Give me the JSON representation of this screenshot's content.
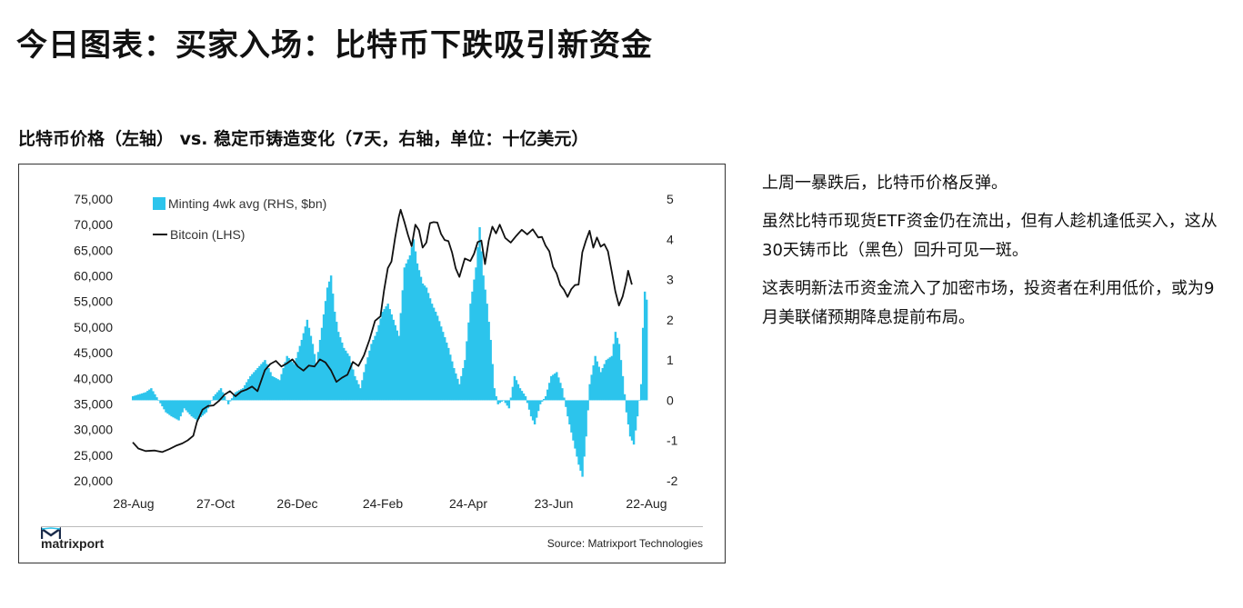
{
  "page": {
    "title": "今日图表：买家入场：比特币下跌吸引新资金",
    "chart_heading": "比特币价格（左轴） vs. 稳定币铸造变化（7天，右轴，单位：十亿美元）",
    "paragraphs": [
      "上周一暴跌后，比特币价格反弹。",
      "虽然比特币现货ETF资金仍在流出，但有人趁机逢低买入，这从30天铸币比（黑色）回升可见一斑。",
      "这表明新法币资金流入了加密市场，投资者在利用低价，或为9月美联储预期降息提前布局。"
    ]
  },
  "footer": {
    "brand": "matrixport",
    "source": "Source: Matrixport Technologies"
  },
  "colors": {
    "minting": "#2cc4ec",
    "bitcoin": "#111111"
  },
  "chart_data": {
    "type": "bar+line",
    "x_tick_labels": [
      "28-Aug",
      "27-Oct",
      "26-Dec",
      "24-Feb",
      "24-Apr",
      "23-Jun",
      "22-Aug"
    ],
    "y_left": {
      "label": "",
      "range": [
        20000,
        75000
      ],
      "ticks": [
        "75,000",
        "70,000",
        "65,000",
        "60,000",
        "55,000",
        "50,000",
        "45,000",
        "40,000",
        "35,000",
        "30,000",
        "25,000",
        "20,000"
      ]
    },
    "y_right": {
      "label": "",
      "range": [
        -2,
        5
      ],
      "ticks": [
        "5",
        "4",
        "3",
        "2",
        "1",
        "0",
        "-1",
        "-2"
      ]
    },
    "legend": [
      {
        "name": "Minting 4wk avg (RHS, $bn)",
        "kind": "bar"
      },
      {
        "name": "Bitcoin (LHS)",
        "kind": "line"
      }
    ],
    "minting_points": [
      [
        0,
        0.1
      ],
      [
        7,
        0.2
      ],
      [
        10,
        0.3
      ],
      [
        14,
        0
      ],
      [
        18,
        -0.3
      ],
      [
        21,
        -0.4
      ],
      [
        25,
        -0.5
      ],
      [
        28,
        -0.2
      ],
      [
        32,
        -0.4
      ],
      [
        35,
        -0.5
      ],
      [
        40,
        -0.3
      ],
      [
        44,
        0.1
      ],
      [
        48,
        0.3
      ],
      [
        52,
        -0.1
      ],
      [
        56,
        0.2
      ],
      [
        60,
        0.3
      ],
      [
        64,
        0.6
      ],
      [
        68,
        0.8
      ],
      [
        72,
        1.0
      ],
      [
        76,
        0.6
      ],
      [
        80,
        0.5
      ],
      [
        84,
        1.1
      ],
      [
        88,
        0.9
      ],
      [
        92,
        1.5
      ],
      [
        95,
        2.0
      ],
      [
        98,
        1.4
      ],
      [
        100,
        0.9
      ],
      [
        103,
        1.8
      ],
      [
        106,
        2.8
      ],
      [
        108,
        3.1
      ],
      [
        110,
        2.2
      ],
      [
        112,
        1.7
      ],
      [
        115,
        1.3
      ],
      [
        118,
        1.1
      ],
      [
        121,
        0.6
      ],
      [
        124,
        0.3
      ],
      [
        127,
        0.9
      ],
      [
        130,
        1.4
      ],
      [
        133,
        1.7
      ],
      [
        136,
        2.2
      ],
      [
        139,
        2.4
      ],
      [
        142,
        2.0
      ],
      [
        145,
        1.6
      ],
      [
        148,
        3.3
      ],
      [
        151,
        3.6
      ],
      [
        153,
        4.0
      ],
      [
        155,
        3.4
      ],
      [
        158,
        2.9
      ],
      [
        160,
        2.8
      ],
      [
        163,
        2.4
      ],
      [
        166,
        2.1
      ],
      [
        169,
        1.7
      ],
      [
        172,
        1.3
      ],
      [
        175,
        0.8
      ],
      [
        178,
        0.4
      ],
      [
        181,
        1.0
      ],
      [
        184,
        2.4
      ],
      [
        187,
        3.3
      ],
      [
        189,
        4.3
      ],
      [
        191,
        3.1
      ],
      [
        193,
        2.4
      ],
      [
        195,
        1.5
      ],
      [
        197,
        0.3
      ],
      [
        199,
        -0.1
      ],
      [
        202,
        0.0
      ],
      [
        205,
        -0.2
      ],
      [
        208,
        0.6
      ],
      [
        211,
        0.3
      ],
      [
        214,
        0.1
      ],
      [
        217,
        -0.4
      ],
      [
        219,
        -0.6
      ],
      [
        222,
        -0.1
      ],
      [
        225,
        0.1
      ],
      [
        228,
        0.6
      ],
      [
        231,
        0.7
      ],
      [
        234,
        0.3
      ],
      [
        237,
        -0.4
      ],
      [
        240,
        -1.0
      ],
      [
        243,
        -1.6
      ],
      [
        245,
        -1.9
      ],
      [
        247,
        -0.9
      ],
      [
        249,
        0.4
      ],
      [
        252,
        1.1
      ],
      [
        255,
        0.7
      ],
      [
        258,
        1.0
      ],
      [
        261,
        1.1
      ],
      [
        263,
        1.7
      ],
      [
        265,
        1.4
      ],
      [
        267,
        0.6
      ],
      [
        269,
        -0.3
      ],
      [
        271,
        -0.9
      ],
      [
        273,
        -1.1
      ],
      [
        275,
        -0.4
      ],
      [
        277,
        0.4
      ],
      [
        278,
        1.8
      ],
      [
        279,
        2.7
      ],
      [
        280,
        2.5
      ]
    ],
    "bitcoin_points": [
      [
        0,
        27500
      ],
      [
        3,
        26300
      ],
      [
        7,
        25800
      ],
      [
        12,
        25900
      ],
      [
        16,
        25600
      ],
      [
        20,
        26200
      ],
      [
        24,
        26900
      ],
      [
        27,
        27300
      ],
      [
        30,
        27900
      ],
      [
        33,
        28800
      ],
      [
        35,
        31500
      ],
      [
        38,
        33900
      ],
      [
        41,
        34600
      ],
      [
        44,
        34700
      ],
      [
        47,
        35600
      ],
      [
        50,
        36800
      ],
      [
        53,
        37500
      ],
      [
        56,
        36500
      ],
      [
        59,
        37400
      ],
      [
        62,
        37800
      ],
      [
        65,
        38400
      ],
      [
        68,
        37500
      ],
      [
        72,
        41600
      ],
      [
        75,
        42800
      ],
      [
        78,
        43400
      ],
      [
        81,
        42300
      ],
      [
        84,
        42900
      ],
      [
        87,
        43700
      ],
      [
        90,
        42300
      ],
      [
        93,
        41500
      ],
      [
        96,
        42500
      ],
      [
        99,
        42300
      ],
      [
        102,
        43700
      ],
      [
        105,
        43100
      ],
      [
        108,
        41600
      ],
      [
        111,
        39300
      ],
      [
        114,
        40100
      ],
      [
        117,
        40700
      ],
      [
        120,
        43200
      ],
      [
        123,
        42400
      ],
      [
        126,
        44500
      ],
      [
        129,
        47500
      ],
      [
        132,
        51200
      ],
      [
        135,
        52100
      ],
      [
        137,
        57200
      ],
      [
        139,
        61500
      ],
      [
        141,
        62800
      ],
      [
        143,
        67500
      ],
      [
        145,
        71500
      ],
      [
        146,
        72900
      ],
      [
        148,
        70600
      ],
      [
        150,
        68000
      ],
      [
        152,
        65800
      ],
      [
        154,
        70000
      ],
      [
        156,
        68900
      ],
      [
        158,
        65500
      ],
      [
        160,
        66500
      ],
      [
        162,
        70300
      ],
      [
        164,
        70500
      ],
      [
        166,
        70400
      ],
      [
        168,
        68200
      ],
      [
        170,
        67000
      ],
      [
        172,
        66800
      ],
      [
        174,
        64600
      ],
      [
        176,
        61500
      ],
      [
        178,
        59800
      ],
      [
        181,
        63400
      ],
      [
        184,
        62900
      ],
      [
        186,
        64300
      ],
      [
        188,
        66600
      ],
      [
        190,
        66900
      ],
      [
        192,
        62300
      ],
      [
        194,
        66900
      ],
      [
        196,
        69600
      ],
      [
        198,
        68300
      ],
      [
        200,
        70000
      ],
      [
        203,
        67400
      ],
      [
        206,
        66500
      ],
      [
        209,
        67800
      ],
      [
        212,
        69000
      ],
      [
        215,
        68100
      ],
      [
        218,
        69100
      ],
      [
        221,
        67500
      ],
      [
        223,
        67600
      ],
      [
        225,
        65900
      ],
      [
        227,
        64800
      ],
      [
        229,
        61800
      ],
      [
        231,
        60500
      ],
      [
        233,
        58200
      ],
      [
        235,
        57300
      ],
      [
        237,
        55900
      ],
      [
        239,
        57400
      ],
      [
        241,
        58200
      ],
      [
        243,
        58300
      ],
      [
        245,
        64600
      ],
      [
        247,
        66900
      ],
      [
        249,
        68800
      ],
      [
        251,
        65500
      ],
      [
        253,
        67500
      ],
      [
        255,
        65700
      ],
      [
        257,
        66200
      ],
      [
        259,
        64800
      ],
      [
        261,
        60900
      ],
      [
        263,
        57000
      ],
      [
        265,
        54200
      ],
      [
        267,
        56000
      ],
      [
        269,
        59000
      ],
      [
        270,
        61000
      ],
      [
        272,
        58300
      ]
    ]
  }
}
